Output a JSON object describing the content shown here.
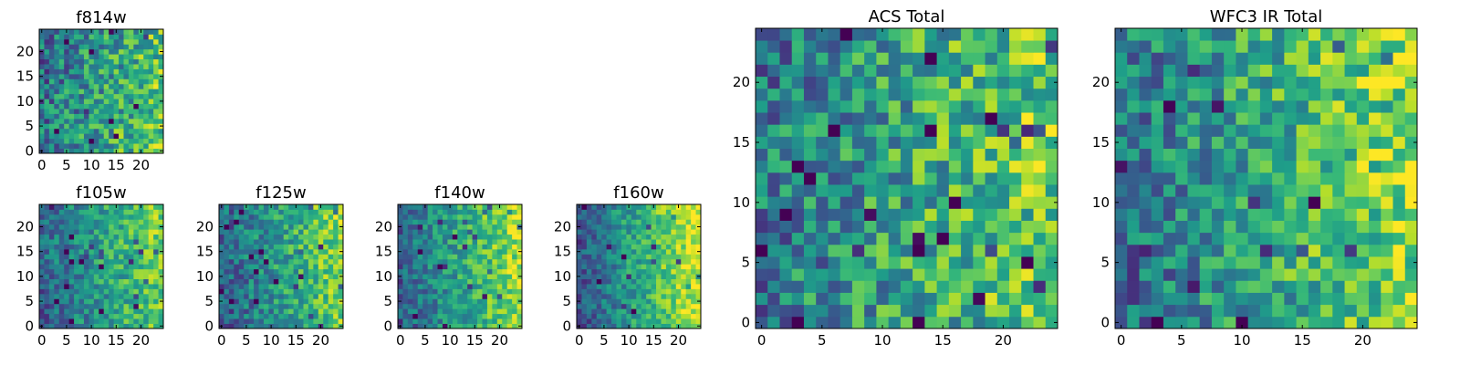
{
  "chart_data": [
    {
      "type": "heatmap",
      "title": "f814w",
      "grid": [
        25,
        25
      ],
      "colormap": "viridis",
      "xlim": [
        0,
        24
      ],
      "ylim": [
        0,
        24
      ],
      "xticks": [
        0,
        5,
        10,
        15,
        20
      ],
      "yticks": [
        0,
        5,
        10,
        15,
        20
      ],
      "tick_labels_x": [
        "0",
        "5",
        "10",
        "15",
        "20"
      ],
      "tick_labels_y": [
        "0",
        "5",
        "10",
        "15",
        "20"
      ],
      "seed": 11,
      "bias": 0.55,
      "gradient": [
        0.35,
        -0.05
      ],
      "noise": 0.55
    },
    {
      "type": "heatmap",
      "title": "f105w",
      "grid": [
        25,
        25
      ],
      "colormap": "viridis",
      "xlim": [
        0,
        24
      ],
      "ylim": [
        0,
        24
      ],
      "xticks": [
        0,
        5,
        10,
        15,
        20
      ],
      "yticks": [
        0,
        5,
        10,
        15,
        20
      ],
      "tick_labels_x": [
        "0",
        "5",
        "10",
        "15",
        "20"
      ],
      "tick_labels_y": [
        "0",
        "5",
        "10",
        "15",
        "20"
      ],
      "seed": 23,
      "bias": 0.55,
      "gradient": [
        0.45,
        0.05
      ],
      "noise": 0.4
    },
    {
      "type": "heatmap",
      "title": "f125w",
      "grid": [
        25,
        25
      ],
      "colormap": "viridis",
      "xlim": [
        0,
        24
      ],
      "ylim": [
        0,
        24
      ],
      "xticks": [
        0,
        5,
        10,
        15,
        20
      ],
      "yticks": [
        0,
        5,
        10,
        15,
        20
      ],
      "tick_labels_x": [
        "0",
        "5",
        "10",
        "15",
        "20"
      ],
      "tick_labels_y": [
        "0",
        "5",
        "10",
        "15",
        "20"
      ],
      "seed": 37,
      "bias": 0.55,
      "gradient": [
        0.5,
        0.05
      ],
      "noise": 0.42
    },
    {
      "type": "heatmap",
      "title": "f140w",
      "grid": [
        25,
        25
      ],
      "colormap": "viridis",
      "xlim": [
        0,
        24
      ],
      "ylim": [
        0,
        24
      ],
      "xticks": [
        0,
        5,
        10,
        15,
        20
      ],
      "yticks": [
        0,
        5,
        10,
        15,
        20
      ],
      "tick_labels_x": [
        "0",
        "5",
        "10",
        "15",
        "20"
      ],
      "tick_labels_y": [
        "0",
        "5",
        "10",
        "15",
        "20"
      ],
      "seed": 41,
      "bias": 0.58,
      "gradient": [
        0.55,
        0.05
      ],
      "noise": 0.38
    },
    {
      "type": "heatmap",
      "title": "f160w",
      "grid": [
        25,
        25
      ],
      "colormap": "viridis",
      "xlim": [
        0,
        24
      ],
      "ylim": [
        0,
        24
      ],
      "xticks": [
        0,
        5,
        10,
        15,
        20
      ],
      "yticks": [
        0,
        5,
        10,
        15,
        20
      ],
      "tick_labels_x": [
        "0",
        "5",
        "10",
        "15",
        "20"
      ],
      "tick_labels_y": [
        "0",
        "5",
        "10",
        "15",
        "20"
      ],
      "seed": 53,
      "bias": 0.6,
      "gradient": [
        0.7,
        0.05
      ],
      "noise": 0.35
    },
    {
      "type": "heatmap",
      "title": "ACS Total",
      "grid": [
        25,
        25
      ],
      "colormap": "viridis",
      "xlim": [
        0,
        24
      ],
      "ylim": [
        0,
        24
      ],
      "xticks": [
        0,
        5,
        10,
        15,
        20
      ],
      "yticks": [
        0,
        5,
        10,
        15,
        20
      ],
      "tick_labels_x": [
        "0",
        "5",
        "10",
        "15",
        "20"
      ],
      "tick_labels_y": [
        "0",
        "5",
        "10",
        "15",
        "20"
      ],
      "seed": 67,
      "bias": 0.58,
      "gradient": [
        0.35,
        0.0
      ],
      "noise": 0.55
    },
    {
      "type": "heatmap",
      "title": "WFC3 IR Total",
      "grid": [
        25,
        25
      ],
      "colormap": "viridis",
      "xlim": [
        0,
        24
      ],
      "ylim": [
        0,
        24
      ],
      "xticks": [
        0,
        5,
        10,
        15,
        20
      ],
      "yticks": [
        0,
        5,
        10,
        15,
        20
      ],
      "tick_labels_x": [
        "0",
        "5",
        "10",
        "15",
        "20"
      ],
      "tick_labels_y": [
        "0",
        "5",
        "10",
        "15",
        "20"
      ],
      "seed": 79,
      "bias": 0.6,
      "gradient": [
        0.45,
        0.05
      ],
      "noise": 0.5
    }
  ]
}
